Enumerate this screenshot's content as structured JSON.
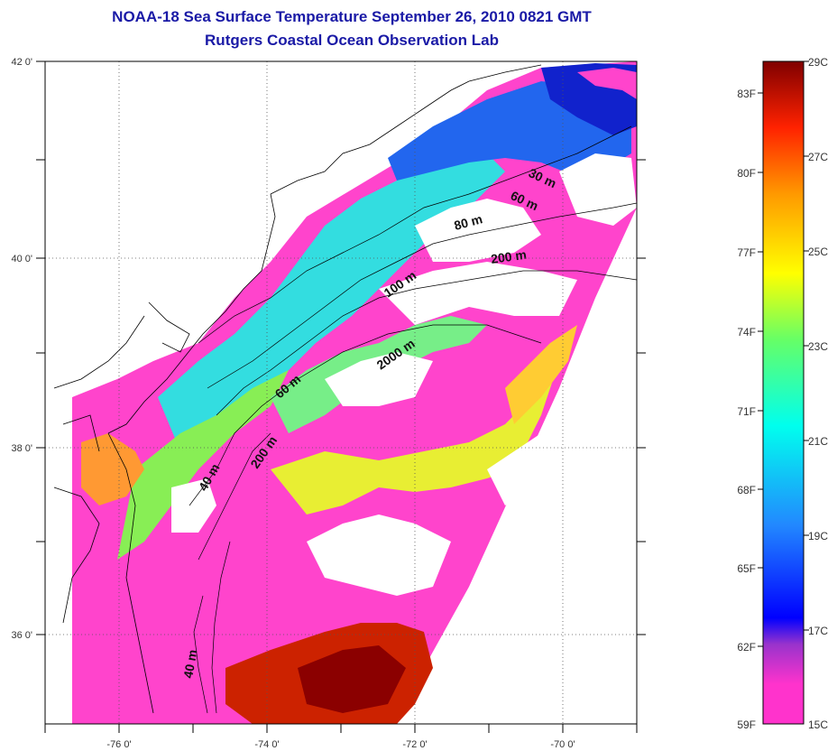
{
  "title": {
    "line1": "NOAA-18 Sea Surface Temperature September 26, 2010 0821 GMT",
    "line2": "Rutgers Coastal Ocean Observation Lab"
  },
  "axes": {
    "lon_labels": [
      "-76 0'",
      "-74 0'",
      "-72 0'",
      "-70 0'"
    ],
    "lat_labels": [
      "42 0'",
      "40 0'",
      "38 0'",
      "36 0'"
    ]
  },
  "isobaths": [
    "30 m",
    "60 m",
    "80 m",
    "200 m",
    "100 m",
    "2000 m",
    "60 m",
    "200 m",
    "40 m",
    "40 m"
  ],
  "colorbar": {
    "left_labels": [
      "83F",
      "80F",
      "77F",
      "74F",
      "71F",
      "68F",
      "65F",
      "62F",
      "59F"
    ],
    "right_labels": [
      "29C",
      "27C",
      "25C",
      "23C",
      "21C",
      "19C",
      "17C",
      "15C"
    ],
    "colors": [
      "#ff33cc",
      "#9933cc",
      "#0000ff",
      "#3399ff",
      "#00ffff",
      "#66ff66",
      "#ffff00",
      "#ff9900",
      "#ff0000",
      "#990000"
    ]
  },
  "map_colors": {
    "land": "#ffffff",
    "cloud": "#ffffff",
    "warm_core": "#cc2200",
    "pink": "#ff44cc",
    "cyan": "#33dde0",
    "blue": "#2255ee"
  }
}
